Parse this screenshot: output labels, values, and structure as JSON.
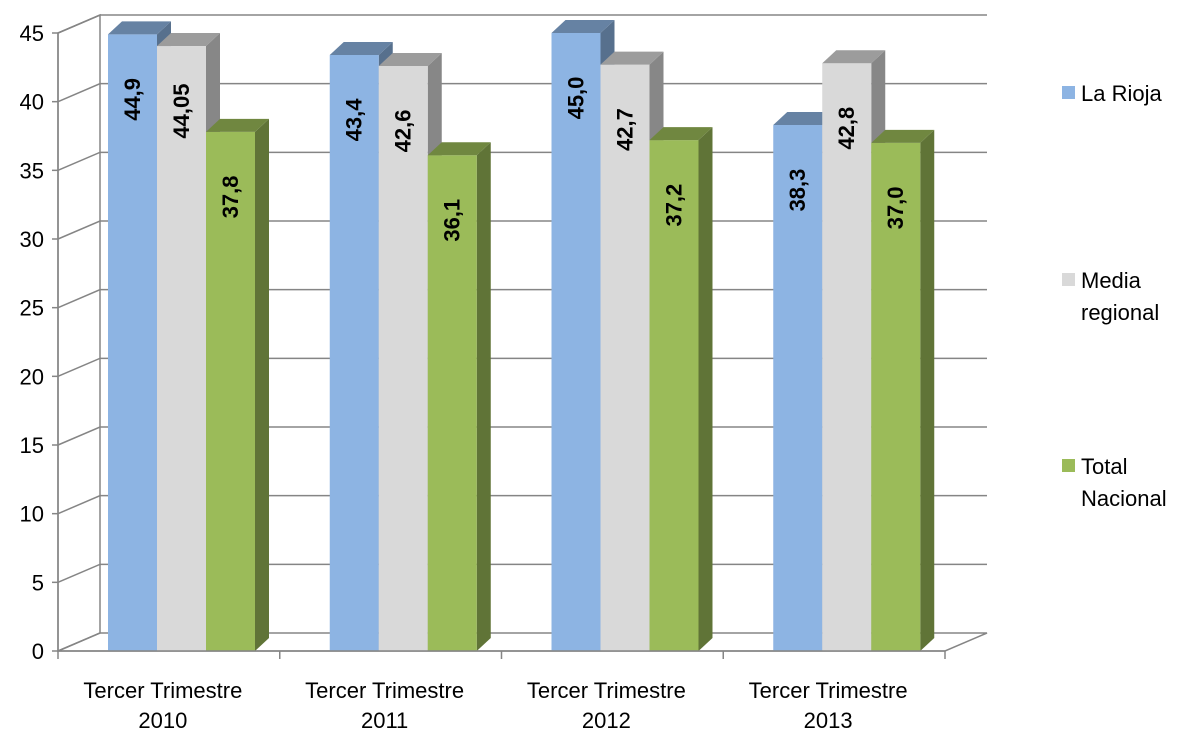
{
  "chart_data": {
    "type": "bar",
    "title": "",
    "xlabel": "",
    "ylabel": "",
    "categories": [
      [
        "Tercer  Trimestre",
        "2010"
      ],
      [
        "Tercer  Trimestre",
        "2011"
      ],
      [
        "Tercer  Trimestre",
        "2012"
      ],
      [
        "Tercer  Trimestre",
        "2013"
      ]
    ],
    "ylim": [
      0,
      45
    ],
    "yticks": [
      "0",
      "5",
      "10",
      "15",
      "20",
      "25",
      "30",
      "35",
      "40",
      "45"
    ],
    "grid": true,
    "legend_position": "right",
    "series": [
      {
        "name": "La Rioja",
        "color": "#8db4e3",
        "values": [
          44.9,
          43.4,
          45.0,
          38.3
        ],
        "labels": [
          "44,9",
          "43,4",
          "45,0",
          "38,3"
        ]
      },
      {
        "name": "Media regional",
        "color": "#d9d9d9",
        "values": [
          44.05,
          42.6,
          42.7,
          42.8
        ],
        "labels": [
          "44,05",
          "42,6",
          "42,7",
          "42,8"
        ]
      },
      {
        "name": "Total Nacional",
        "color": "#9bbb59",
        "values": [
          37.8,
          36.1,
          37.2,
          37.0
        ],
        "labels": [
          "37,8",
          "36,1",
          "37,2",
          "37,0"
        ]
      }
    ]
  },
  "legend": {
    "items": [
      {
        "label": "La Rioja",
        "color": "#8db4e3"
      },
      {
        "label": "Media regional",
        "color": "#d9d9d9"
      },
      {
        "label": "Total Nacional",
        "color": "#9bbb59"
      }
    ]
  }
}
